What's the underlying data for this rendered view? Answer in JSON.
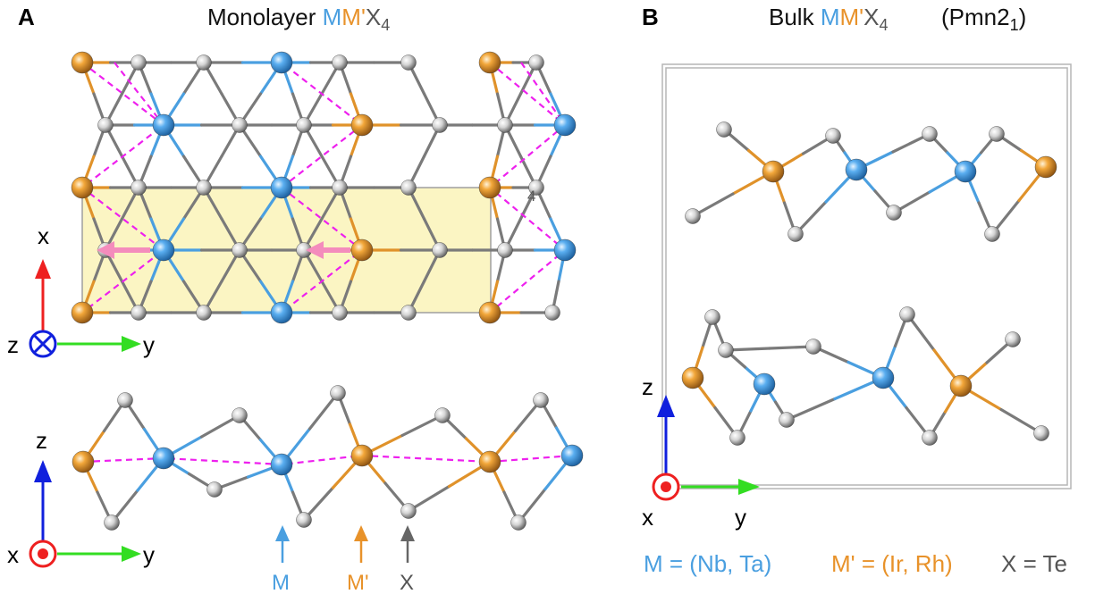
{
  "panel_a": {
    "letter": "A",
    "title_prefix": "Monolayer ",
    "title_m": "M",
    "title_mp": "M'",
    "title_x": "X",
    "title_sub": "4",
    "cell_marker": "4",
    "top_axes": {
      "vertical": "x",
      "horizontal": "y",
      "out_of_plane": "z"
    },
    "side_axes": {
      "vertical": "z",
      "horizontal": "y",
      "out_of_plane": "x"
    },
    "atom_labels": {
      "m": "M",
      "mp": "M'",
      "x": "X"
    }
  },
  "panel_b": {
    "letter": "B",
    "title_prefix": "Bulk ",
    "title_m": "M",
    "title_mp": "M'",
    "title_x": "X",
    "title_sub": "4",
    "space_group_prefix": "(Pmn2",
    "space_group_sub": "1",
    "space_group_suffix": ")",
    "axes": {
      "vertical": "z",
      "horizontal": "y",
      "out_of_plane": "x"
    }
  },
  "legend": {
    "m": "M = (Nb, Ta)",
    "mp": "M' = (Ir, Rh)",
    "x": "X = Te"
  },
  "colors": {
    "m_atom": "#4a9fe0",
    "mp_atom": "#f0a030",
    "x_atom": "#c8c8c8",
    "dashed_bond": "#ee20ee",
    "highlight_cell": "#fbf5c0",
    "axis_x_red": "#ee2020",
    "axis_y_green": "#33dd22",
    "axis_z_blue": "#1020dd",
    "text_m": "#4a9fe0",
    "text_mp": "#e8922a",
    "text_x": "#555555"
  }
}
